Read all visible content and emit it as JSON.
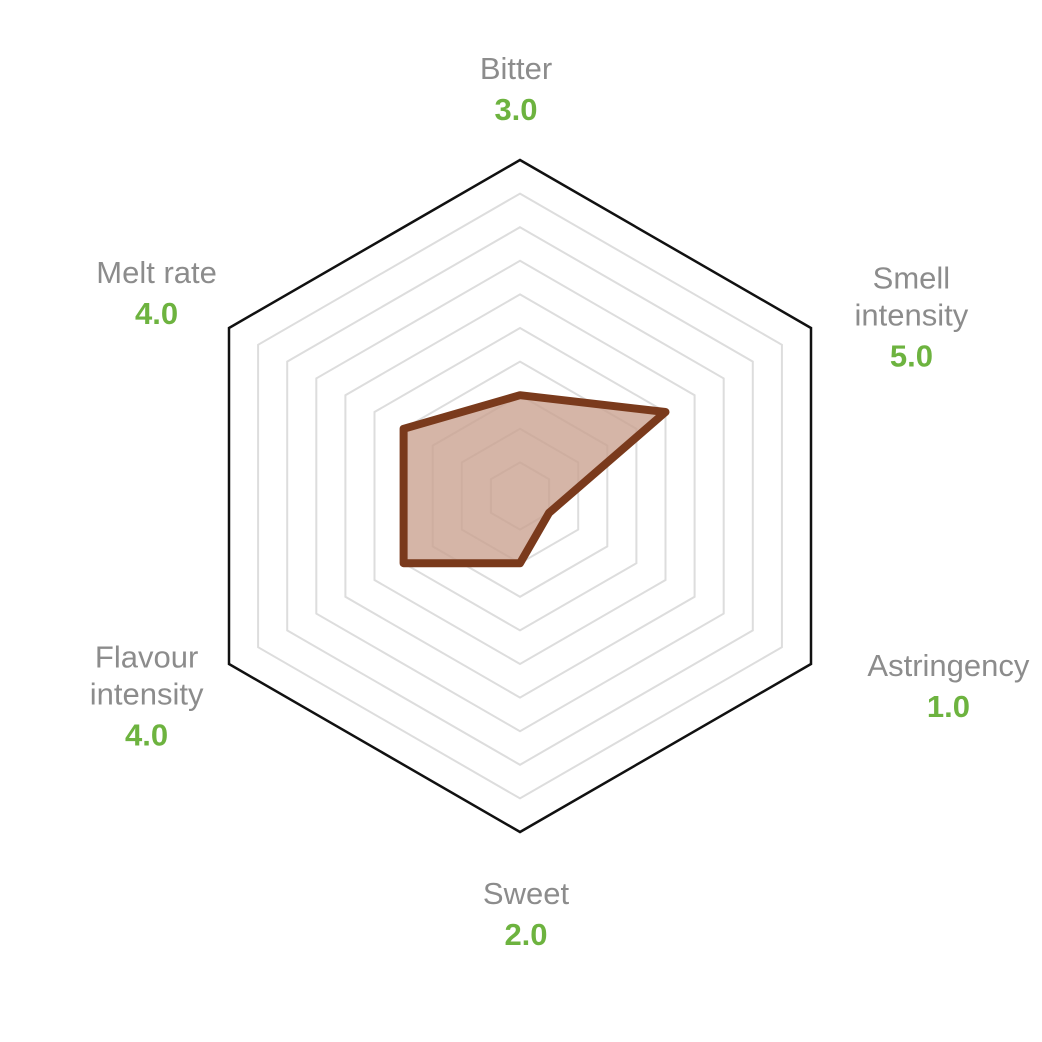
{
  "chart_data": {
    "type": "radar",
    "scale_max": 10,
    "rings": 10,
    "axes": [
      {
        "name_lines": [
          "Bitter"
        ],
        "value_label": "3.0",
        "value": 3.0
      },
      {
        "name_lines": [
          "Smell",
          "intensity"
        ],
        "value_label": "5.0",
        "value": 5.0
      },
      {
        "name_lines": [
          "Astringency"
        ],
        "value_label": "1.0",
        "value": 1.0
      },
      {
        "name_lines": [
          "Sweet"
        ],
        "value_label": "2.0",
        "value": 2.0
      },
      {
        "name_lines": [
          "Flavour",
          "intensity"
        ],
        "value_label": "4.0",
        "value": 4.0
      },
      {
        "name_lines": [
          "Melt rate"
        ],
        "value_label": "4.0",
        "value": 4.0
      }
    ],
    "colors": {
      "series_line": "#7a3a1c",
      "series_fill": "#c9a08e",
      "outer_frame": "#111111",
      "grid": "#dddddd",
      "axis_name": "#8c8c8c",
      "axis_value": "#6db33f"
    }
  }
}
